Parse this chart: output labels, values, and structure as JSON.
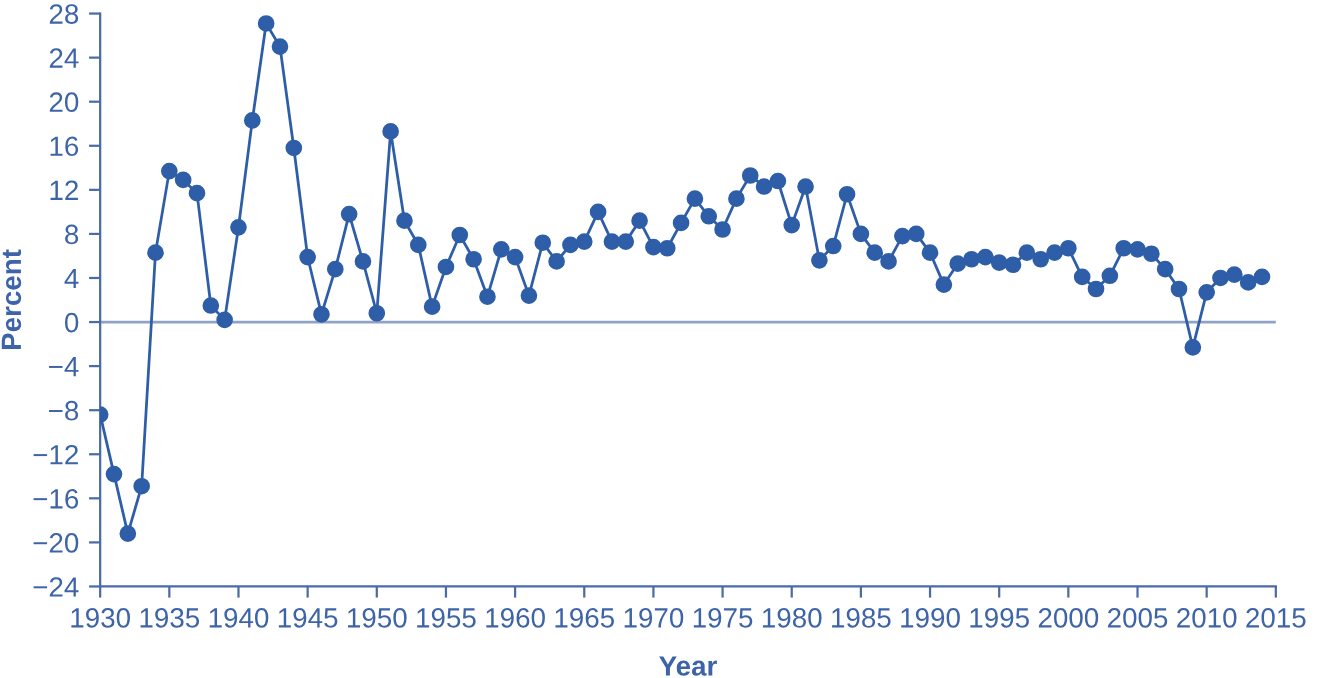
{
  "chart_data": {
    "type": "line",
    "xlabel": "Year",
    "ylabel": "Percent",
    "x": [
      1930,
      1931,
      1932,
      1933,
      1934,
      1935,
      1936,
      1937,
      1938,
      1939,
      1940,
      1941,
      1942,
      1943,
      1944,
      1945,
      1946,
      1947,
      1948,
      1949,
      1950,
      1951,
      1952,
      1953,
      1954,
      1955,
      1956,
      1957,
      1958,
      1959,
      1960,
      1961,
      1962,
      1963,
      1964,
      1965,
      1966,
      1967,
      1968,
      1969,
      1970,
      1971,
      1972,
      1973,
      1974,
      1975,
      1976,
      1977,
      1978,
      1979,
      1980,
      1981,
      1982,
      1983,
      1984,
      1985,
      1986,
      1987,
      1988,
      1989,
      1990,
      1991,
      1992,
      1993,
      1994,
      1995,
      1996,
      1997,
      1998,
      1999,
      2000,
      2001,
      2002,
      2003,
      2004,
      2005,
      2006,
      2007,
      2008,
      2009,
      2010,
      2011,
      2012,
      2013,
      2014
    ],
    "series": [
      {
        "color": "#2e5ea8",
        "values": [
          -8.4,
          -13.8,
          -19.2,
          -14.9,
          6.3,
          13.7,
          12.9,
          11.7,
          1.5,
          0.2,
          8.6,
          18.3,
          27.1,
          25.0,
          15.8,
          5.9,
          0.7,
          4.8,
          9.8,
          5.5,
          0.8,
          17.3,
          9.2,
          7.0,
          1.4,
          5.0,
          7.9,
          5.7,
          2.3,
          6.6,
          5.9,
          2.4,
          7.2,
          5.5,
          7.0,
          7.3,
          10.0,
          7.3,
          7.3,
          9.2,
          6.8,
          6.7,
          9.0,
          11.2,
          9.6,
          8.4,
          11.2,
          13.3,
          12.3,
          12.8,
          8.8,
          12.3,
          5.6,
          6.9,
          11.6,
          8.0,
          6.3,
          5.5,
          7.8,
          8.0,
          6.3,
          3.4,
          5.3,
          5.7,
          5.9,
          5.4,
          5.2,
          6.3,
          5.7,
          6.3,
          6.7,
          4.1,
          3.0,
          4.2,
          6.7,
          6.6,
          6.2,
          4.8,
          3.0,
          -2.3,
          2.7,
          4.0,
          4.3,
          3.6,
          4.1
        ]
      }
    ],
    "xlim": [
      1930,
      2015
    ],
    "ylim": [
      -24,
      28
    ],
    "xticks": [
      1930,
      1935,
      1940,
      1945,
      1950,
      1955,
      1960,
      1965,
      1970,
      1975,
      1980,
      1985,
      1990,
      1995,
      2000,
      2005,
      2010,
      2015
    ],
    "yticks": [
      {
        "value": -24,
        "label": "−24"
      },
      {
        "value": -20,
        "label": "−20"
      },
      {
        "value": -16,
        "label": "−16"
      },
      {
        "value": -12,
        "label": "−12"
      },
      {
        "value": -8,
        "label": "−8"
      },
      {
        "value": -4,
        "label": "−4"
      },
      0,
      4,
      8,
      12,
      16,
      20,
      24,
      28
    ],
    "ref_lines": [
      {
        "axis": "y",
        "value": 0,
        "color": "#8fa3c8"
      }
    ],
    "marker": "circle",
    "line_style": "solid",
    "grid": false,
    "legend": false
  }
}
